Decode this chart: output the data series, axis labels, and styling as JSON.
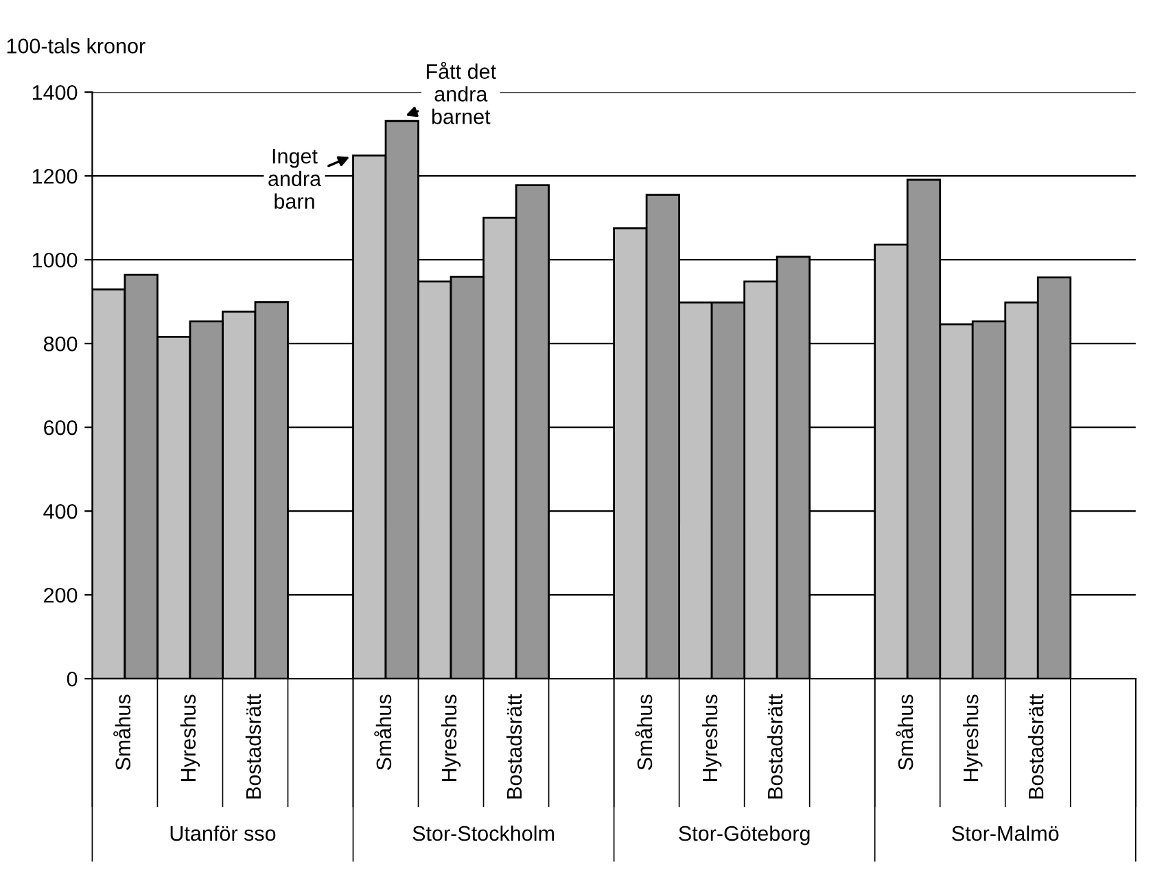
{
  "chart_data": {
    "type": "bar",
    "ylabel": "100-tals kronor",
    "categories": [
      "Småhus",
      "Hyreshus",
      "Bostadsrätt",
      null,
      "Småhus",
      "Hyreshus",
      "Bostadsrätt",
      null,
      "Småhus",
      "Hyreshus",
      "Bostadsrätt",
      null,
      "Småhus",
      "Hyreshus",
      "Bostadsrätt",
      null
    ],
    "series": [
      {
        "name": "Inget andra barn",
        "color": "#c0c0c0",
        "values": [
          929,
          816,
          876,
          null,
          1249,
          948,
          1100,
          null,
          1075,
          898,
          948,
          null,
          1036,
          846,
          898,
          null
        ]
      },
      {
        "name": "Fått det andra barnet",
        "color": "#969696",
        "values": [
          964,
          853,
          899,
          null,
          1331,
          959,
          1178,
          null,
          1155,
          898,
          1007,
          null,
          1191,
          853,
          958,
          null
        ]
      }
    ],
    "annotations": [
      "Utanför sso",
      "Stor-Stockholm",
      "Stor-Göteborg",
      "Stor-Malmö"
    ],
    "ylim": [
      0,
      1400
    ],
    "yticks": [
      0,
      200,
      400,
      600,
      800,
      1000,
      1200,
      1400
    ],
    "grid": "y"
  }
}
